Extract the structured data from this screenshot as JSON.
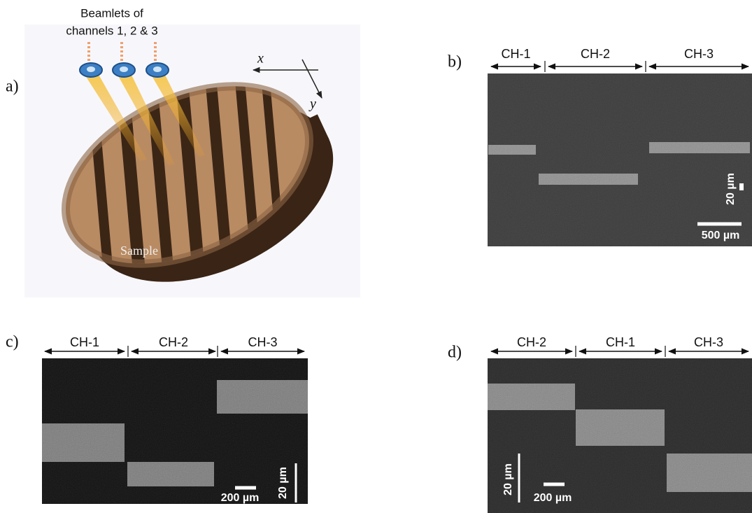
{
  "panels": [
    {
      "label": "a)",
      "beamlets_title": [
        "Beamlets of",
        "channels 1, 2 & 3"
      ],
      "axes": [
        "x",
        "y"
      ],
      "sample_label": "Sample"
    },
    {
      "label": "b)",
      "channels": [
        "CH-1",
        "CH-2",
        "CH-3"
      ],
      "scale_vertical": "20 µm",
      "scale_horizontal": "500 µm"
    },
    {
      "label": "c)",
      "channels": [
        "CH-1",
        "CH-2",
        "CH-3"
      ],
      "scale_vertical": "20 µm",
      "scale_horizontal": "200 µm"
    },
    {
      "label": "d)",
      "channels": [
        "CH-2",
        "CH-1",
        "CH-3"
      ],
      "scale_vertical": "20 µm",
      "scale_horizontal": "200 µm"
    }
  ]
}
